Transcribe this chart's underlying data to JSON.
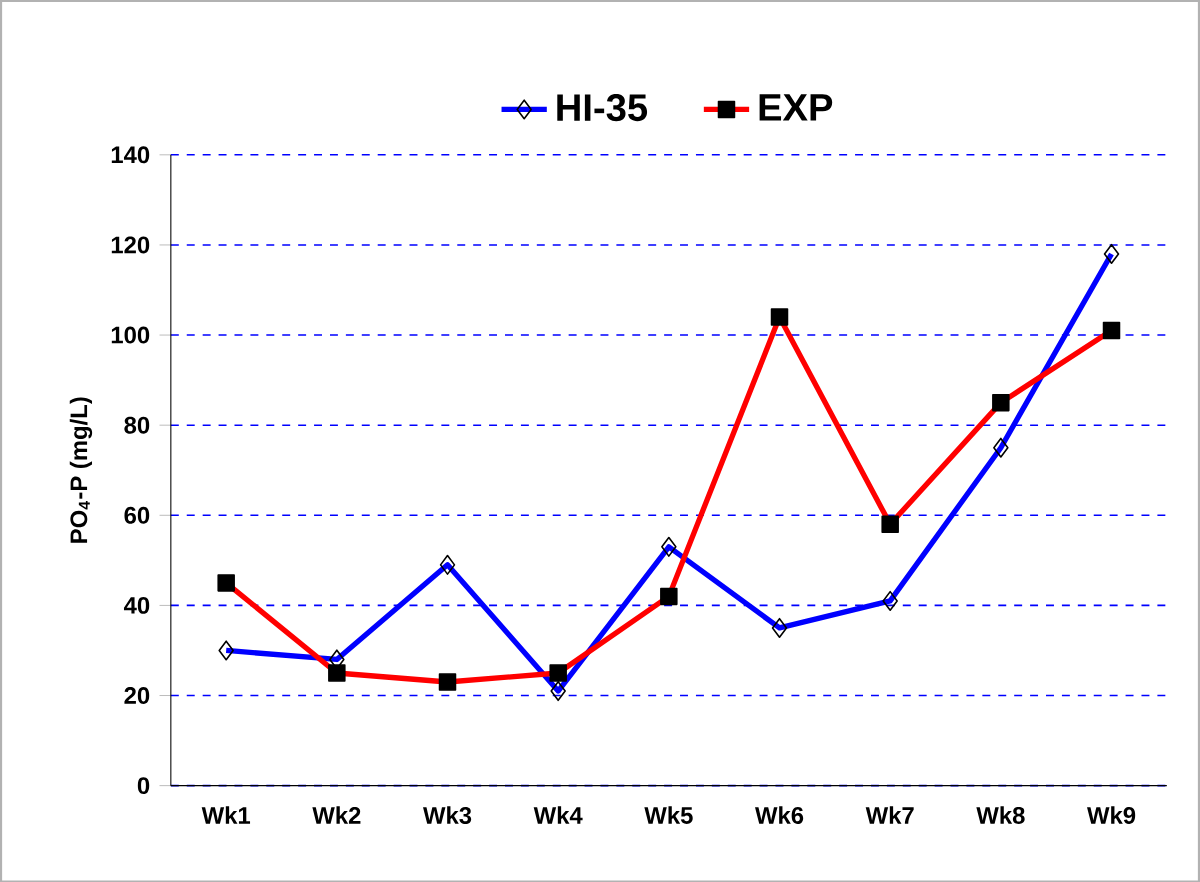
{
  "chart_data": {
    "type": "line",
    "ylabel": "PO$_{4}$-P (mg/L)",
    "categories": [
      "Wk1",
      "Wk2",
      "Wk3",
      "Wk4",
      "Wk5",
      "Wk6",
      "Wk7",
      "Wk8",
      "Wk9"
    ],
    "series": [
      {
        "name": "HI-35",
        "color": "#0000ff",
        "marker": "diamond",
        "values": [
          30,
          28,
          49,
          21,
          53,
          35,
          41,
          75,
          118
        ]
      },
      {
        "name": "EXP",
        "color": "#ff0000",
        "marker": "square",
        "values": [
          45,
          25,
          23,
          25,
          42,
          104,
          58,
          85,
          101
        ]
      }
    ],
    "ylim": [
      0,
      140
    ],
    "yticks": [
      0,
      20,
      40,
      60,
      80,
      100,
      120,
      140
    ],
    "grid": "y",
    "legend": "top",
    "line_style": "solid"
  }
}
